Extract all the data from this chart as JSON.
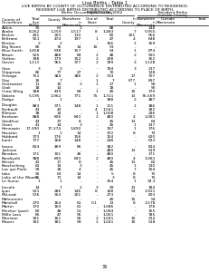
{
  "title1": "Live Births - Table 1",
  "title2": "LIVE BIRTHS BY COUNTY OF OCCURRENCE DISTRIBUTED ACCORDING TO RESIDENCE:",
  "title3": "RESIDENT LIVE BIRTHS DISTRIBUTED ACCORDING TO PLACE OF BIRTH,",
  "title4": "MINNESOTA, 2002",
  "header_line1": "________Births Occurring in County_________  ____Resident Births____",
  "header_line2": "                        Elsewhere        Out of                  Outside",
  "header_line3": "County of      Total     in              State    Total  In      County   Outside",
  "header_line4": "Occurrence     Live      County  Minn.            County  Minn.   Minn.   Total",
  "header_line5": "               Births",
  "rows": [
    [
      "Aitkin",
      "95",
      "63",
      "2",
      "-",
      "88",
      "-",
      "148"
    ],
    [
      "Anoka",
      "8,262",
      "1,259",
      "1,517",
      "8",
      "1,483",
      "7",
      "5,955"
    ],
    [
      "Becker",
      "441",
      "203",
      "110",
      "-",
      "80",
      "101",
      "566"
    ],
    [
      "Beltrami",
      "551",
      "474",
      "197",
      "1",
      "47",
      "4",
      "648"
    ],
    [
      "Benton",
      "2",
      "2",
      "-",
      "-",
      "366",
      "1",
      "369"
    ],
    [
      "Big Stone",
      "86",
      "76",
      "14",
      "10",
      "53",
      "-",
      "-"
    ],
    [
      "Blue Earth",
      "1,458",
      "638",
      "157",
      "-",
      "54",
      "1",
      "874"
    ],
    [
      "Brown",
      "525",
      "488",
      "84",
      "2",
      "48",
      "2",
      "591"
    ],
    [
      "Carlton",
      "398",
      "179",
      "152",
      "2",
      "208",
      "-",
      "362"
    ],
    [
      "Carver",
      "1,111",
      "965",
      "377",
      "2",
      "399",
      "2",
      "1,128"
    ],
    [
      ""
    ],
    [
      "Cass",
      "3",
      "3",
      "-",
      "-",
      "194",
      "3",
      "217"
    ],
    [
      "Chippewa",
      "86",
      "77",
      "27",
      "-",
      "70",
      "-",
      "128"
    ],
    [
      "Chisago",
      "751",
      "384",
      "386",
      "2",
      "314",
      "17",
      "707"
    ],
    [
      "Clay",
      "16",
      "7",
      "-",
      "1",
      "7",
      "677",
      "897"
    ],
    [
      "Clearwater",
      "11",
      "10",
      "3",
      "1",
      "17",
      "1",
      "58"
    ],
    [
      "Cook",
      "18",
      "14",
      "-",
      "-",
      "18",
      "-",
      "56"
    ],
    [
      "Crow Wing",
      "188",
      "439",
      "84",
      "1",
      "40",
      "10",
      "170"
    ],
    [
      "Dakota",
      "5,195",
      "1,962",
      "771",
      "75",
      "1,311",
      "13",
      "76,569"
    ],
    [
      "Dodge",
      "1",
      "1",
      "-",
      "-",
      "388",
      "2",
      "487"
    ],
    [
      ""
    ],
    [
      "Douglas",
      "883",
      "371",
      "148",
      "1",
      "111",
      "1",
      "386"
    ],
    [
      "Faribault",
      "43",
      "43",
      "-",
      "4",
      "1,041",
      "-",
      "182"
    ],
    [
      "Fillmore",
      "18",
      "14",
      "-",
      "1",
      "1,008",
      "-",
      "246"
    ],
    [
      "Freeborn",
      "888",
      "806",
      "843",
      "2",
      "480",
      "4",
      "1,081"
    ],
    [
      "Goodhue",
      "43",
      "37",
      "8",
      "-",
      "45",
      "13",
      "64"
    ],
    [
      "Grant",
      "41",
      "14",
      "3",
      "-",
      "45",
      "1",
      "137"
    ],
    [
      "Hennepin",
      "17,390",
      "17,374",
      "1,892",
      "-",
      "197",
      "1",
      "176"
    ],
    [
      "Houston",
      "1",
      "1",
      "14",
      "-",
      "372",
      "8",
      "73"
    ],
    [
      "Hubbard",
      "373",
      "176",
      "156",
      "-",
      "104",
      "-",
      "620"
    ],
    [
      "Isanti",
      "777",
      "168",
      "148",
      "-",
      "248",
      "-",
      "633"
    ],
    [
      ""
    ],
    [
      "Itasca",
      "814",
      "469",
      "86",
      "-",
      "382",
      "-",
      "814"
    ],
    [
      "Jackson",
      "-",
      "-",
      "-",
      "-",
      "480",
      "13",
      "519"
    ],
    [
      "Kanabec",
      "171",
      "101",
      "46",
      "-",
      "480",
      "-",
      "171"
    ],
    [
      "Kandiyohi",
      "988",
      "890",
      "843",
      "2",
      "480",
      "4",
      "1,081"
    ],
    [
      "Kittson",
      "43",
      "17",
      "8",
      "-",
      "45",
      "13",
      "62"
    ],
    [
      "Koochiching",
      "81",
      "14",
      "3",
      "-",
      "45",
      "1",
      "130"
    ],
    [
      "Lac qui Parle",
      "93",
      "28",
      "4",
      "-",
      "45",
      "7",
      "104"
    ],
    [
      "Lake",
      "95",
      "63",
      "14",
      "-",
      "5",
      "8",
      "75"
    ],
    [
      "Lake of the Woods",
      "75",
      "71",
      "14",
      "-",
      "3",
      "8",
      "75"
    ],
    [
      "Le Sueur",
      "1",
      "1",
      "-",
      "-",
      "354",
      "1",
      "33.3"
    ],
    [
      ""
    ],
    [
      "Lincoln",
      "14",
      "7",
      "2",
      "3",
      "58",
      "13",
      "184"
    ],
    [
      "Lyon",
      "521",
      "286",
      "146",
      "8",
      "148",
      "54",
      "1,921"
    ],
    [
      "McLeod",
      "576",
      "353",
      "201",
      "-",
      "273",
      "-",
      "803"
    ],
    [
      "Mahnomen",
      "-",
      "-",
      "-",
      "-",
      "40",
      "15",
      "54"
    ],
    [
      "Marshall",
      "270",
      "164",
      "61",
      "0.1",
      "13",
      "8",
      "1,578"
    ],
    [
      "Martin",
      "170",
      "160",
      "61",
      "-",
      "1,086",
      "-",
      "178"
    ],
    [
      "Meeker (part)",
      "80",
      "48",
      "51",
      "-",
      "1,084",
      "-",
      "765"
    ],
    [
      "Mille Lacs",
      "85",
      "47",
      "56",
      "-",
      "1,061",
      "-",
      "785"
    ],
    [
      "Morrison",
      "391",
      "161",
      "56",
      "2",
      "1,041",
      "10",
      "314"
    ],
    [
      "Mower",
      "391",
      "181",
      "58",
      "2",
      "1,041",
      "10",
      "518"
    ]
  ],
  "footer": "36",
  "background_color": "#ffffff",
  "text_color": "#000000"
}
